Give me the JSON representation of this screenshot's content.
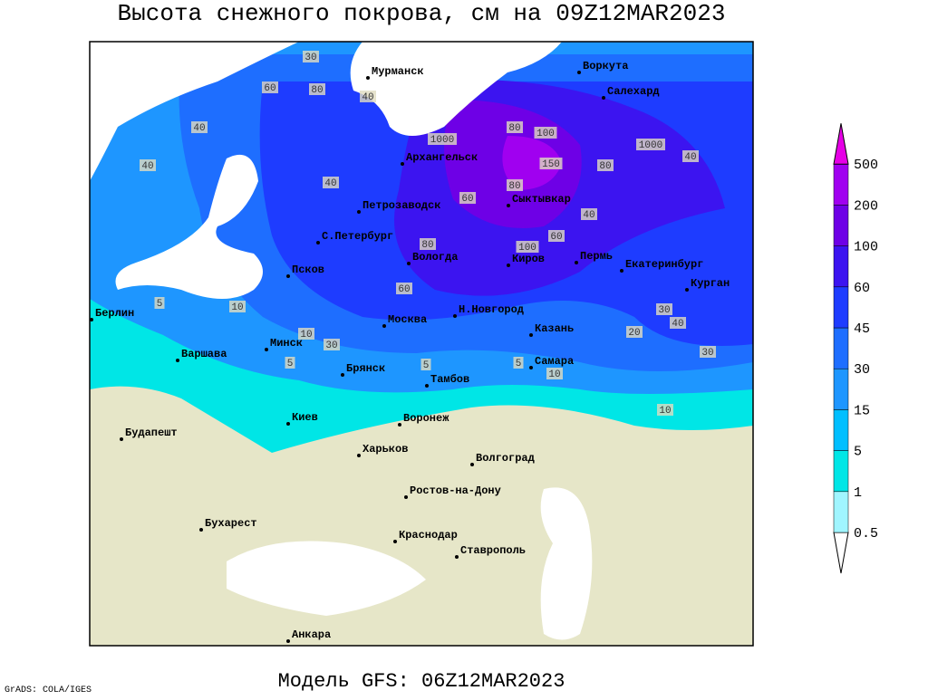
{
  "header": {
    "title": "Высота снежного покрова, см на 09Z12MAR2023"
  },
  "footer": {
    "model": "Модель GFS: 06Z12MAR2023",
    "credit": "GrADS: COLA/IGES"
  },
  "cities": [
    "Мурманск",
    "Воркута",
    "Салехард",
    "Архангельск",
    "Сыктывкар",
    "Петрозаводск",
    "С.Петербург",
    "Вологда",
    "Киров",
    "Пермь",
    "Екатеринбург",
    "Курган",
    "Псков",
    "Москва",
    "Н.Новгород",
    "Казань",
    "Берлин",
    "Варшава",
    "Минск",
    "Брянск",
    "Тамбов",
    "Самара",
    "Киев",
    "Воронеж",
    "Будапешт",
    "Харьков",
    "Волгоград",
    "Ростов-на-Дону",
    "Бухарест",
    "Краснодар",
    "Ставрополь",
    "Анкара"
  ],
  "contour_labels": [
    30,
    60,
    80,
    40,
    40,
    1000,
    100,
    150,
    80,
    1000,
    40,
    40,
    100,
    80,
    60,
    60,
    40,
    80,
    30,
    10,
    10,
    5,
    5,
    10,
    30,
    40,
    30,
    10,
    5,
    20,
    60,
    80,
    40,
    5
  ],
  "legend": {
    "levels": [
      0.5,
      1,
      5,
      15,
      30,
      45,
      60,
      100,
      200,
      500
    ],
    "colors": [
      "#ffffff",
      "#a0f5ff",
      "#00e6e6",
      "#00bfff",
      "#1e96ff",
      "#1e6eff",
      "#1e3cff",
      "#3c14f0",
      "#6e00e6",
      "#a000f0",
      "#e600e6"
    ]
  }
}
